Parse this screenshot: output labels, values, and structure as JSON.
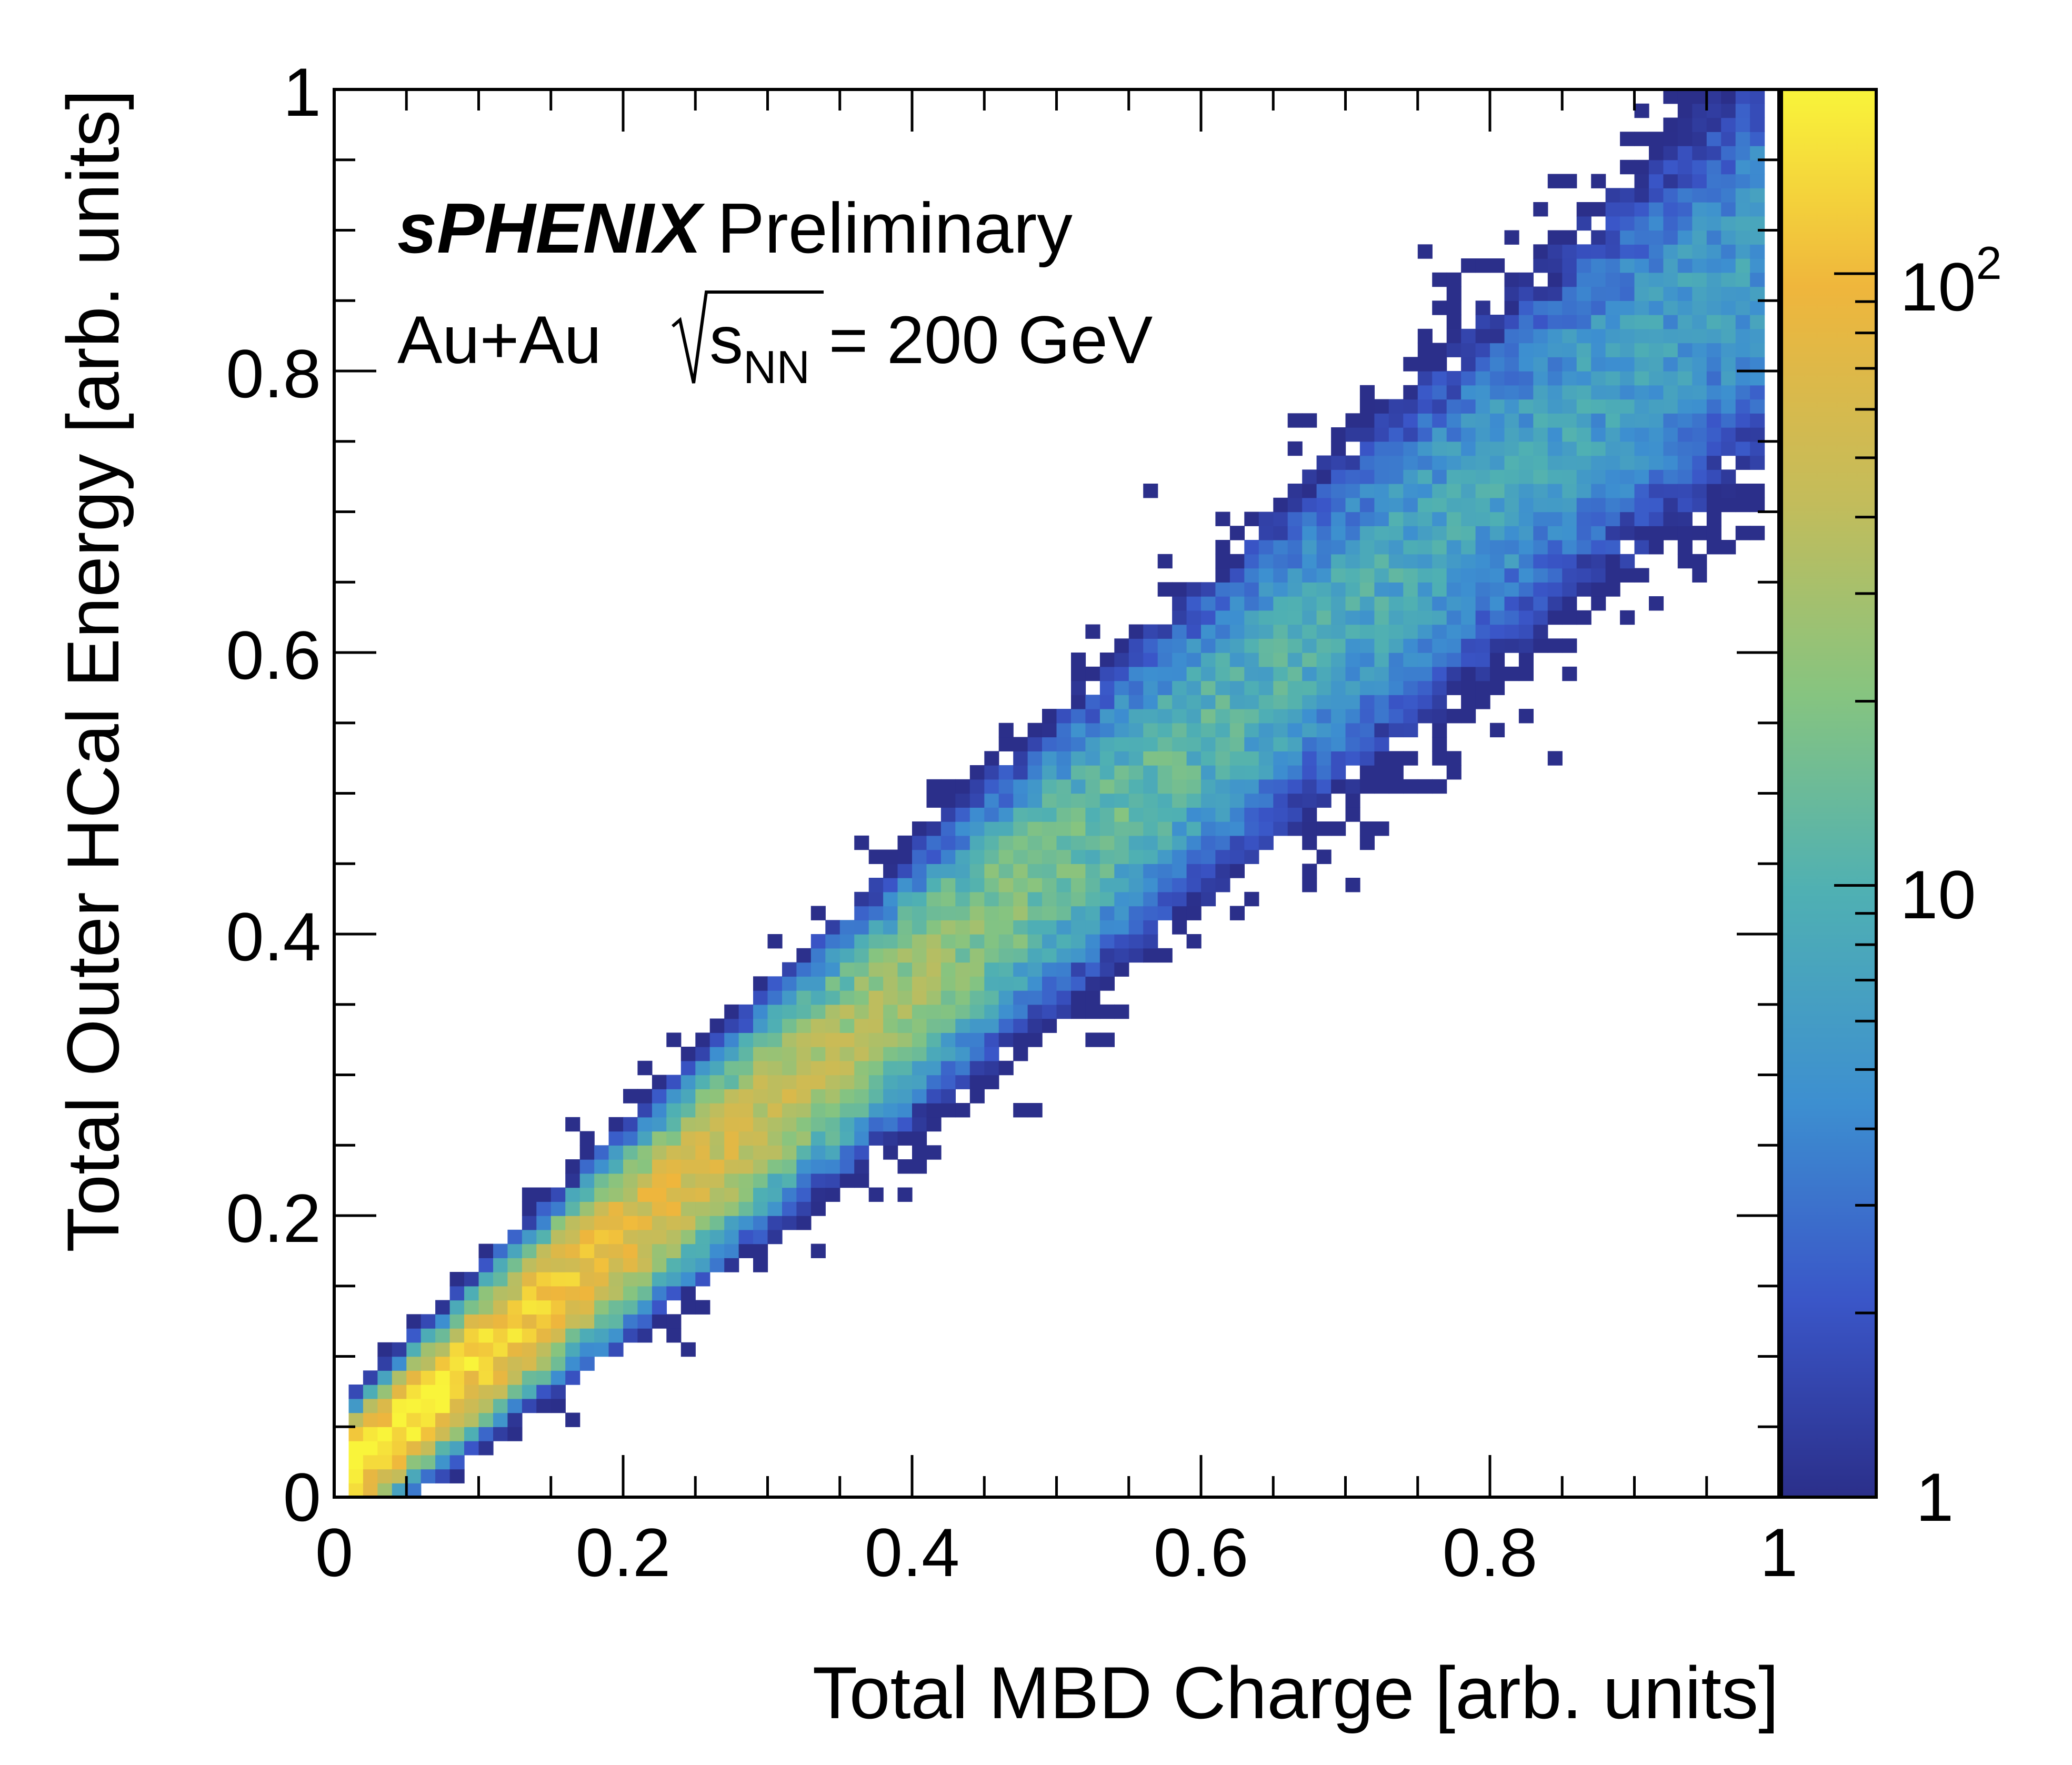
{
  "chart_data": {
    "type": "heatmap",
    "experiment": "sPHENIX",
    "status": "Preliminary",
    "system_prefix": "Au+Au ",
    "system_sqrt": "s",
    "system_sub": "NN",
    "system_suffix": " = 200 GeV",
    "xlabel": "Total MBD Charge [arb. units]",
    "ylabel": "Total Outer HCal Energy [arb. units]",
    "xlim": [
      0,
      1
    ],
    "ylim": [
      0,
      1
    ],
    "xticks": [
      "0",
      "0.2",
      "0.4",
      "0.6",
      "0.8",
      "1"
    ],
    "yticks": [
      "0",
      "0.2",
      "0.4",
      "0.6",
      "0.8",
      "1"
    ],
    "bins": [
      100,
      100
    ],
    "colorbar": {
      "scale": "log",
      "range": [
        1,
        200
      ],
      "tick_base": "10",
      "tick_exp": "2",
      "tick_10": "10",
      "tick_1": "1",
      "colors": [
        "#2b2f8a",
        "#3a56c8",
        "#3d8fd0",
        "#4fb0b3",
        "#86c480",
        "#c4bc5a",
        "#efb63c",
        "#f9f43a"
      ]
    },
    "band": {
      "description": "correlation ridge",
      "slope": 0.88,
      "intercept": 0.01,
      "x_range": [
        0.01,
        0.99
      ],
      "peak_counts": 200,
      "peak_x": 0.05
    }
  }
}
